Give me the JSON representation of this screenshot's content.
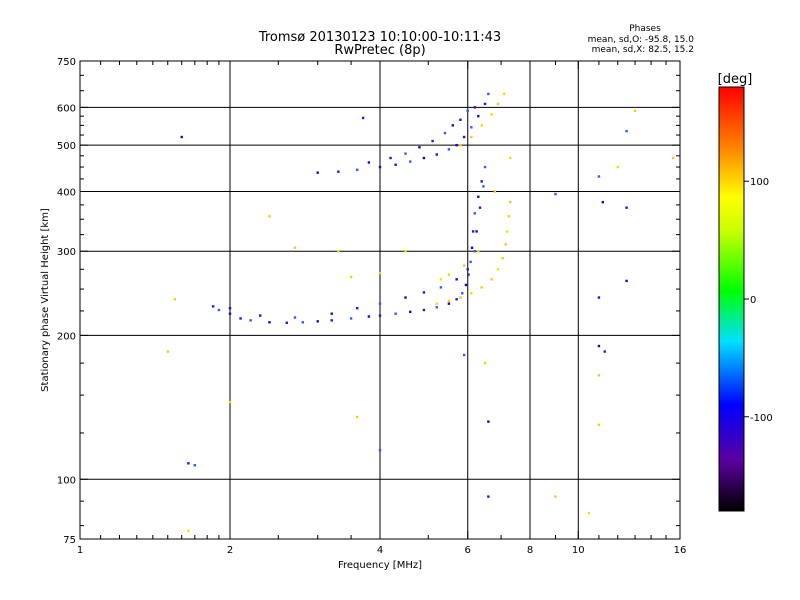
{
  "chart_data": {
    "type": "scatter",
    "title": "Tromsø 20130123 10:10:00-10:11:43",
    "subtitle": "RwPretec (8p)",
    "xlabel": "Frequency [MHz]",
    "ylabel": "Stationary phase Virtual Height [km]",
    "x_scale": "log",
    "y_scale": "log",
    "xlim": [
      1,
      16
    ],
    "ylim": [
      75,
      750
    ],
    "x_ticks": [
      1,
      2,
      4,
      6,
      8,
      10,
      16
    ],
    "x_tick_labels": [
      "1",
      "2",
      "4",
      "6",
      "8",
      "10",
      "16"
    ],
    "y_ticks": [
      75,
      100,
      200,
      300,
      400,
      500,
      600,
      750
    ],
    "y_tick_labels": [
      "75",
      "100",
      "200",
      "300",
      "400",
      "500",
      "600",
      "750"
    ],
    "grid": true,
    "phase_info": {
      "heading": "Phases",
      "o_line": "mean, sd,O:  -95.8, 15.0",
      "x_line": "mean, sd,X:   82.5, 15.2"
    },
    "colorbar": {
      "label": "[deg]",
      "range": [
        -180,
        180
      ],
      "ticks": [
        100,
        0,
        -100
      ],
      "tick_labels": [
        "100",
        "0",
        "-100"
      ]
    },
    "series": [
      {
        "color_phase": -100,
        "points": [
          [
            1.85,
            230
          ],
          [
            1.9,
            226
          ],
          [
            2.0,
            222
          ],
          [
            2.1,
            217
          ],
          [
            2.2,
            215
          ],
          [
            2.4,
            213
          ],
          [
            2.6,
            212.5
          ],
          [
            2.8,
            213
          ],
          [
            3.0,
            214
          ],
          [
            3.2,
            215
          ],
          [
            3.5,
            217
          ],
          [
            3.8,
            219
          ],
          [
            4.0,
            220
          ],
          [
            4.3,
            222
          ],
          [
            4.6,
            224
          ],
          [
            4.9,
            226
          ],
          [
            5.2,
            229
          ],
          [
            5.5,
            233
          ],
          [
            5.7,
            238
          ],
          [
            5.85,
            245
          ],
          [
            5.95,
            255
          ],
          [
            6.02,
            268
          ],
          [
            6.08,
            285
          ],
          [
            6.12,
            305
          ],
          [
            6.15,
            330
          ],
          [
            6.2,
            360
          ],
          [
            6.3,
            390
          ],
          [
            6.4,
            420
          ],
          [
            6.5,
            450
          ],
          [
            2.0,
            228
          ],
          [
            2.3,
            220
          ],
          [
            2.7,
            218
          ],
          [
            3.2,
            222
          ],
          [
            3.6,
            228
          ],
          [
            4.0,
            233
          ],
          [
            4.5,
            240
          ],
          [
            4.9,
            246
          ],
          [
            5.3,
            252
          ],
          [
            5.7,
            262
          ],
          [
            6.0,
            275
          ],
          [
            6.2,
            300
          ],
          [
            6.25,
            330
          ],
          [
            6.35,
            370
          ],
          [
            6.45,
            410
          ],
          [
            3.0,
            438
          ],
          [
            3.3,
            440
          ],
          [
            3.6,
            444
          ],
          [
            4.0,
            450
          ],
          [
            4.3,
            455
          ],
          [
            4.6,
            462
          ],
          [
            4.9,
            470
          ],
          [
            5.2,
            478
          ],
          [
            5.5,
            490
          ],
          [
            5.7,
            500
          ],
          [
            5.9,
            520
          ],
          [
            6.1,
            545
          ],
          [
            6.3,
            575
          ],
          [
            6.5,
            610
          ],
          [
            6.6,
            640
          ],
          [
            3.8,
            460
          ],
          [
            4.2,
            470
          ],
          [
            4.5,
            480
          ],
          [
            4.8,
            495
          ],
          [
            5.1,
            510
          ],
          [
            5.4,
            530
          ],
          [
            5.6,
            550
          ],
          [
            5.8,
            565
          ],
          [
            6.0,
            590
          ],
          [
            6.2,
            600
          ],
          [
            1.65,
            108
          ],
          [
            1.7,
            107
          ],
          [
            1.6,
            520
          ],
          [
            3.7,
            570
          ],
          [
            4.0,
            115
          ],
          [
            6.6,
            132
          ],
          [
            6.6,
            92
          ],
          [
            9.0,
            395
          ],
          [
            11.0,
            190
          ],
          [
            11.3,
            185
          ],
          [
            11.0,
            430
          ],
          [
            11.2,
            380
          ],
          [
            12.5,
            370
          ],
          [
            12.5,
            535
          ],
          [
            12.5,
            260
          ],
          [
            11.0,
            240
          ],
          [
            5.9,
            182
          ]
        ]
      },
      {
        "color_phase": 90,
        "points": [
          [
            5.2,
            233
          ],
          [
            5.5,
            236
          ],
          [
            5.8,
            240
          ],
          [
            6.1,
            245
          ],
          [
            6.4,
            252
          ],
          [
            6.7,
            262
          ],
          [
            6.9,
            275
          ],
          [
            7.05,
            290
          ],
          [
            7.15,
            310
          ],
          [
            7.2,
            330
          ],
          [
            7.25,
            355
          ],
          [
            7.3,
            380
          ],
          [
            5.3,
            262
          ],
          [
            5.5,
            268
          ],
          [
            5.9,
            280
          ],
          [
            6.3,
            300
          ],
          [
            5.8,
            500
          ],
          [
            6.1,
            520
          ],
          [
            6.4,
            550
          ],
          [
            6.7,
            580
          ],
          [
            6.9,
            610
          ],
          [
            7.1,
            640
          ],
          [
            2.4,
            355
          ],
          [
            2.7,
            305
          ],
          [
            3.3,
            300
          ],
          [
            3.5,
            265
          ],
          [
            4.0,
            270
          ],
          [
            4.5,
            300
          ],
          [
            1.55,
            238
          ],
          [
            1.5,
            185
          ],
          [
            1.65,
            78
          ],
          [
            6.5,
            175
          ],
          [
            9.0,
            92
          ],
          [
            10.5,
            85
          ],
          [
            11.0,
            130
          ],
          [
            11.0,
            165
          ],
          [
            12.0,
            450
          ],
          [
            13.0,
            590
          ],
          [
            15.5,
            470
          ],
          [
            2.0,
            145
          ],
          [
            3.6,
            135
          ],
          [
            6.8,
            400
          ],
          [
            7.3,
            470
          ]
        ]
      }
    ]
  }
}
